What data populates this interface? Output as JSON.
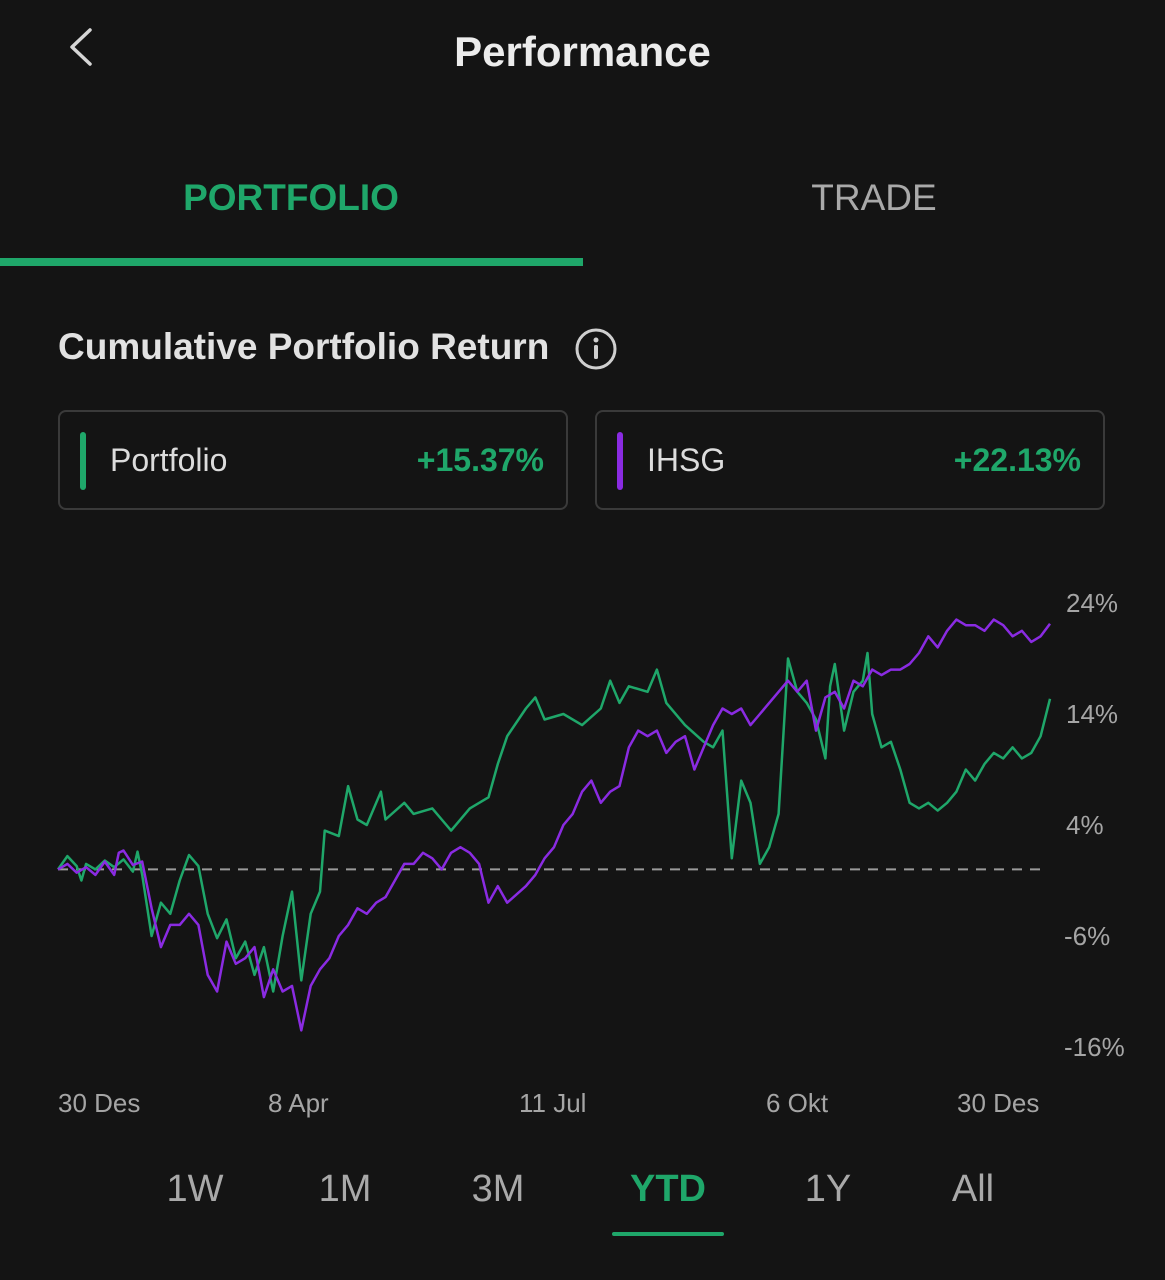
{
  "header": {
    "title": "Performance",
    "back_icon": "chevron-left-icon"
  },
  "tabs": [
    {
      "label": "PORTFOLIO",
      "active": true
    },
    {
      "label": "TRADE",
      "active": false
    }
  ],
  "section": {
    "title": "Cumulative Portfolio Return",
    "info_icon": "info-icon"
  },
  "legend": [
    {
      "name": "Portfolio",
      "value": "+15.37%",
      "color": "#1fa76a"
    },
    {
      "name": "IHSG",
      "value": "+22.13%",
      "color": "#8a2be2"
    }
  ],
  "colors": {
    "accent": "#1fa76a",
    "positive": "#1fa76a",
    "ihsg": "#8a2be2",
    "background": "#141414"
  },
  "periods": [
    {
      "label": "1W",
      "active": false
    },
    {
      "label": "1M",
      "active": false
    },
    {
      "label": "3M",
      "active": false
    },
    {
      "label": "YTD",
      "active": true
    },
    {
      "label": "1Y",
      "active": false
    },
    {
      "label": "All",
      "active": false
    }
  ],
  "chart_data": {
    "type": "line",
    "title": "",
    "xlabel": "",
    "ylabel": "",
    "x_ticks": [
      "30 Des",
      "8 Apr",
      "11 Jul",
      "6 Okt",
      "30 Des"
    ],
    "y_ticks": [
      "24%",
      "14%",
      "4%",
      "-6%",
      "-16%"
    ],
    "ylim": [
      -16,
      24
    ],
    "baseline": 0,
    "grid": false,
    "y_axis_side": "right",
    "series": [
      {
        "name": "Portfolio",
        "color": "#1fa76a",
        "points": [
          [
            0,
            0
          ],
          [
            0.01,
            1.2
          ],
          [
            0.02,
            0.3
          ],
          [
            0.025,
            -1.0
          ],
          [
            0.03,
            0.5
          ],
          [
            0.04,
            0.0
          ],
          [
            0.05,
            0.8
          ],
          [
            0.06,
            0.2
          ],
          [
            0.07,
            0.9
          ],
          [
            0.08,
            -0.2
          ],
          [
            0.085,
            1.6
          ],
          [
            0.09,
            -0.5
          ],
          [
            0.1,
            -6.0
          ],
          [
            0.11,
            -3.0
          ],
          [
            0.12,
            -4.0
          ],
          [
            0.13,
            -1.0
          ],
          [
            0.14,
            1.3
          ],
          [
            0.15,
            0.3
          ],
          [
            0.16,
            -4.0
          ],
          [
            0.17,
            -6.2
          ],
          [
            0.18,
            -4.5
          ],
          [
            0.19,
            -8.0
          ],
          [
            0.2,
            -6.5
          ],
          [
            0.21,
            -9.5
          ],
          [
            0.22,
            -7.0
          ],
          [
            0.23,
            -11.0
          ],
          [
            0.24,
            -6.0
          ],
          [
            0.25,
            -2.0
          ],
          [
            0.26,
            -10.0
          ],
          [
            0.27,
            -4.0
          ],
          [
            0.28,
            -2.0
          ],
          [
            0.285,
            3.5
          ],
          [
            0.3,
            3.0
          ],
          [
            0.31,
            7.5
          ],
          [
            0.32,
            4.5
          ],
          [
            0.33,
            4.0
          ],
          [
            0.345,
            7.0
          ],
          [
            0.35,
            4.5
          ],
          [
            0.37,
            6.0
          ],
          [
            0.38,
            5.0
          ],
          [
            0.4,
            5.5
          ],
          [
            0.41,
            4.5
          ],
          [
            0.42,
            3.5
          ],
          [
            0.44,
            5.5
          ],
          [
            0.46,
            6.5
          ],
          [
            0.47,
            9.5
          ],
          [
            0.48,
            12.0
          ],
          [
            0.5,
            14.5
          ],
          [
            0.51,
            15.5
          ],
          [
            0.52,
            13.5
          ],
          [
            0.54,
            14.0
          ],
          [
            0.56,
            13.0
          ],
          [
            0.58,
            14.5
          ],
          [
            0.59,
            17.0
          ],
          [
            0.6,
            15.0
          ],
          [
            0.61,
            16.5
          ],
          [
            0.63,
            16.0
          ],
          [
            0.64,
            18.0
          ],
          [
            0.65,
            15.0
          ],
          [
            0.67,
            13.0
          ],
          [
            0.69,
            11.5
          ],
          [
            0.7,
            11.0
          ],
          [
            0.71,
            12.5
          ],
          [
            0.72,
            1.0
          ],
          [
            0.73,
            8.0
          ],
          [
            0.74,
            6.0
          ],
          [
            0.75,
            0.5
          ],
          [
            0.76,
            2.0
          ],
          [
            0.77,
            5.0
          ],
          [
            0.78,
            19.0
          ],
          [
            0.79,
            16.0
          ],
          [
            0.8,
            15.0
          ],
          [
            0.81,
            13.5
          ],
          [
            0.82,
            10.0
          ],
          [
            0.825,
            16.5
          ],
          [
            0.83,
            18.5
          ],
          [
            0.84,
            12.5
          ],
          [
            0.85,
            16.0
          ],
          [
            0.86,
            17.0
          ],
          [
            0.865,
            19.5
          ],
          [
            0.87,
            14.0
          ],
          [
            0.88,
            11.0
          ],
          [
            0.89,
            11.5
          ],
          [
            0.9,
            9.0
          ],
          [
            0.91,
            6.0
          ],
          [
            0.92,
            5.5
          ],
          [
            0.93,
            6.0
          ],
          [
            0.94,
            5.3
          ],
          [
            0.95,
            6.0
          ],
          [
            0.96,
            7.0
          ],
          [
            0.97,
            9.0
          ],
          [
            0.98,
            8.0
          ],
          [
            0.99,
            9.5
          ],
          [
            1.0,
            10.5
          ],
          [
            1.01,
            10.0
          ],
          [
            1.02,
            11.0
          ],
          [
            1.03,
            10.0
          ],
          [
            1.04,
            10.5
          ],
          [
            1.05,
            12.0
          ],
          [
            1.06,
            15.37
          ]
        ]
      },
      {
        "name": "IHSG",
        "color": "#8a2be2",
        "points": [
          [
            0,
            0
          ],
          [
            0.01,
            0.5
          ],
          [
            0.02,
            -0.3
          ],
          [
            0.03,
            0.2
          ],
          [
            0.04,
            -0.5
          ],
          [
            0.05,
            0.7
          ],
          [
            0.06,
            -0.5
          ],
          [
            0.065,
            1.5
          ],
          [
            0.07,
            1.7
          ],
          [
            0.08,
            0.4
          ],
          [
            0.09,
            0.7
          ],
          [
            0.1,
            -3.5
          ],
          [
            0.11,
            -7.0
          ],
          [
            0.12,
            -5.0
          ],
          [
            0.13,
            -5.0
          ],
          [
            0.14,
            -4.0
          ],
          [
            0.15,
            -5.0
          ],
          [
            0.16,
            -9.5
          ],
          [
            0.17,
            -11.0
          ],
          [
            0.18,
            -6.5
          ],
          [
            0.19,
            -8.5
          ],
          [
            0.2,
            -8.0
          ],
          [
            0.21,
            -7.0
          ],
          [
            0.22,
            -11.5
          ],
          [
            0.23,
            -9.0
          ],
          [
            0.24,
            -11.0
          ],
          [
            0.25,
            -10.5
          ],
          [
            0.26,
            -14.5
          ],
          [
            0.27,
            -10.5
          ],
          [
            0.28,
            -9.0
          ],
          [
            0.29,
            -8.0
          ],
          [
            0.3,
            -6.0
          ],
          [
            0.31,
            -5.0
          ],
          [
            0.32,
            -3.5
          ],
          [
            0.33,
            -4.0
          ],
          [
            0.34,
            -3.0
          ],
          [
            0.35,
            -2.5
          ],
          [
            0.36,
            -1.0
          ],
          [
            0.37,
            0.5
          ],
          [
            0.38,
            0.5
          ],
          [
            0.39,
            1.5
          ],
          [
            0.4,
            1.0
          ],
          [
            0.41,
            0.0
          ],
          [
            0.42,
            1.5
          ],
          [
            0.43,
            2.0
          ],
          [
            0.44,
            1.5
          ],
          [
            0.45,
            0.5
          ],
          [
            0.46,
            -3.0
          ],
          [
            0.47,
            -1.5
          ],
          [
            0.48,
            -3.0
          ],
          [
            0.5,
            -1.5
          ],
          [
            0.51,
            -0.5
          ],
          [
            0.52,
            1.0
          ],
          [
            0.53,
            2.0
          ],
          [
            0.54,
            4.0
          ],
          [
            0.55,
            5.0
          ],
          [
            0.56,
            7.0
          ],
          [
            0.57,
            8.0
          ],
          [
            0.58,
            6.0
          ],
          [
            0.59,
            7.0
          ],
          [
            0.6,
            7.5
          ],
          [
            0.61,
            11.0
          ],
          [
            0.62,
            12.5
          ],
          [
            0.63,
            12.0
          ],
          [
            0.64,
            12.5
          ],
          [
            0.65,
            10.5
          ],
          [
            0.66,
            11.5
          ],
          [
            0.67,
            12.0
          ],
          [
            0.68,
            9.0
          ],
          [
            0.69,
            11.0
          ],
          [
            0.7,
            13.0
          ],
          [
            0.71,
            14.5
          ],
          [
            0.72,
            14.0
          ],
          [
            0.73,
            14.5
          ],
          [
            0.74,
            13.0
          ],
          [
            0.75,
            14.0
          ],
          [
            0.76,
            15.0
          ],
          [
            0.77,
            16.0
          ],
          [
            0.78,
            17.0
          ],
          [
            0.79,
            16.0
          ],
          [
            0.8,
            17.0
          ],
          [
            0.81,
            12.5
          ],
          [
            0.82,
            15.5
          ],
          [
            0.83,
            16.0
          ],
          [
            0.84,
            14.5
          ],
          [
            0.85,
            17.0
          ],
          [
            0.86,
            16.5
          ],
          [
            0.87,
            18.0
          ],
          [
            0.88,
            17.5
          ],
          [
            0.89,
            18.0
          ],
          [
            0.9,
            18.0
          ],
          [
            0.91,
            18.5
          ],
          [
            0.92,
            19.5
          ],
          [
            0.93,
            21.0
          ],
          [
            0.94,
            20.0
          ],
          [
            0.95,
            21.5
          ],
          [
            0.96,
            22.5
          ],
          [
            0.97,
            22.0
          ],
          [
            0.98,
            22.0
          ],
          [
            0.99,
            21.5
          ],
          [
            1.0,
            22.5
          ],
          [
            1.01,
            22.0
          ],
          [
            1.02,
            21.0
          ],
          [
            1.03,
            21.5
          ],
          [
            1.04,
            20.5
          ],
          [
            1.05,
            21.0
          ],
          [
            1.06,
            22.13
          ]
        ]
      }
    ]
  }
}
